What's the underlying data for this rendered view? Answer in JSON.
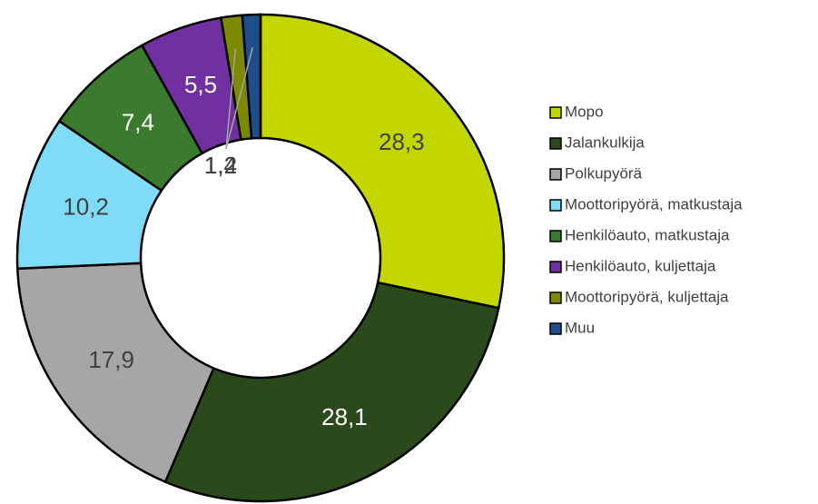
{
  "chart_data": {
    "type": "donut",
    "categories": [
      "Mopo",
      "Jalankulkija",
      "Polkupyörä",
      "Moottoripyörä, matkustaja",
      "Henkilöauto, matkustaja",
      "Henkilöauto, kuljettaja",
      "Moottoripyörä, kuljettaja",
      "Muu"
    ],
    "values": [
      28.3,
      28.1,
      17.9,
      10.2,
      7.4,
      5.5,
      1.4,
      1.2
    ],
    "value_labels": [
      "28,3",
      "28,1",
      "17,9",
      "10,2",
      "7,4",
      "5,5",
      "1,4",
      "1,2"
    ],
    "colors": [
      "#c4d600",
      "#2b4a1c",
      "#a6a6a6",
      "#80dcf6",
      "#3b7b2f",
      "#7030a0",
      "#7d8900",
      "#1f4e8c"
    ],
    "legend": "right"
  }
}
